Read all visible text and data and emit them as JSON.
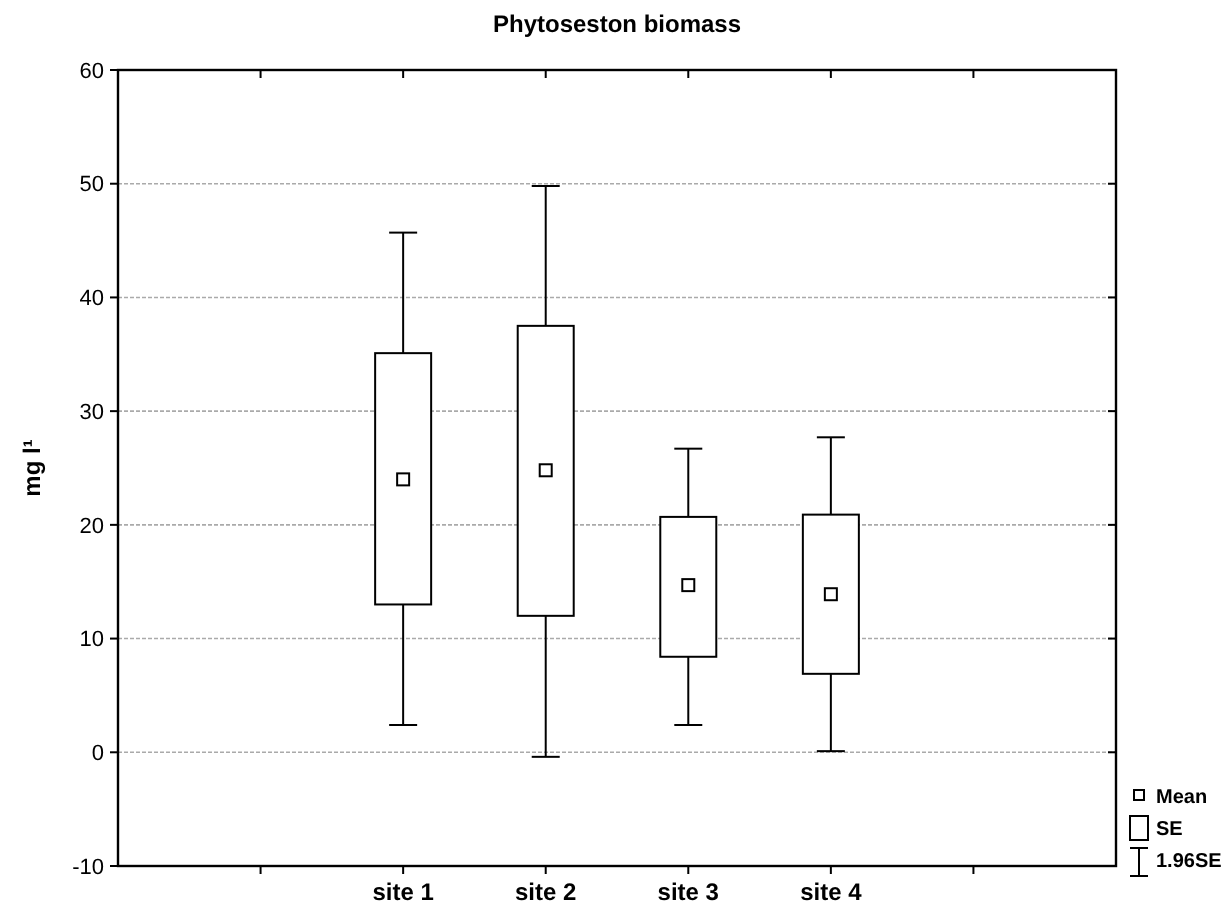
{
  "chart_data": {
    "type": "box",
    "title": "Phytoseston biomass",
    "ylabel": "mg l¹",
    "categories": [
      null,
      "site 1",
      "site 2",
      "site 3",
      "site 4",
      null
    ],
    "boxes": [
      null,
      {
        "low": 2.4,
        "q1": 13,
        "median": 24,
        "q3": 35.1,
        "high": 45.7
      },
      {
        "low": -0.4,
        "q1": 12,
        "median": 24.8,
        "q3": 37.5,
        "high": 49.8
      },
      {
        "low": 2.4,
        "q1": 8.4,
        "median": 14.7,
        "q3": 20.7,
        "high": 26.7
      },
      {
        "low": 0.1,
        "q1": 6.9,
        "median": 13.9,
        "q3": 20.9,
        "high": 27.7
      },
      null
    ],
    "ylim": [
      -10,
      60
    ],
    "yticks": [
      -10,
      0,
      10,
      20,
      30,
      40,
      50,
      60
    ],
    "grid": "y",
    "annotations": [
      "Mean",
      "SE",
      "1.96SE"
    ]
  }
}
